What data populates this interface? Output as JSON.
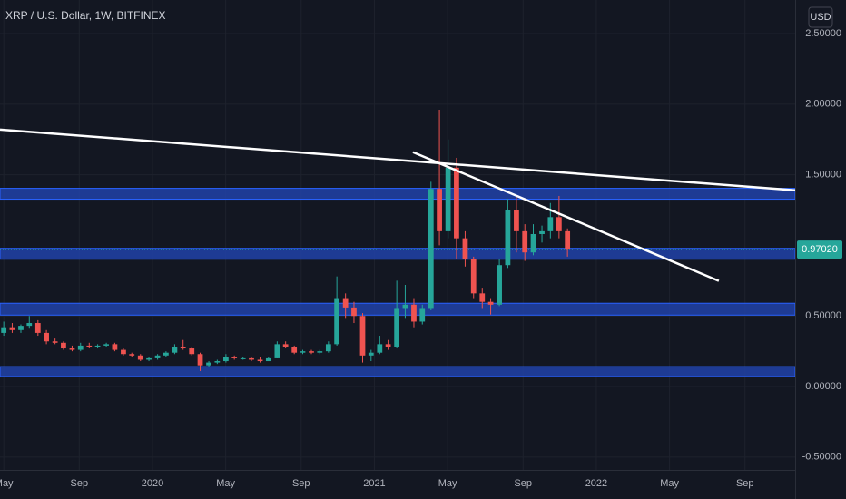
{
  "chart_data": {
    "type": "candlestick",
    "title": "XRP / U.S. Dollar, 1W, BITFINEX",
    "currency": "USD",
    "up_color": "#26a69a",
    "down_color": "#ef5350",
    "grid": true,
    "xlim": [
      2019.313,
      2022.896
    ],
    "ylim": [
      -0.591,
      2.738
    ],
    "xticks": [
      {
        "value": 2019.33,
        "label": "May"
      },
      {
        "value": 2019.67,
        "label": "Sep"
      },
      2020,
      {
        "value": 2020.33,
        "label": "May"
      },
      {
        "value": 2020.67,
        "label": "Sep"
      },
      2021,
      {
        "value": 2021.33,
        "label": "May"
      },
      {
        "value": 2021.67,
        "label": "Sep"
      },
      2022,
      {
        "value": 2022.33,
        "label": "May"
      },
      {
        "value": 2022.67,
        "label": "Sep"
      }
    ],
    "yticks": [
      {
        "value": 2.5,
        "label": "2.50000"
      },
      {
        "value": 2.0,
        "label": "2.00000"
      },
      {
        "value": 1.5,
        "label": "1.50000"
      },
      {
        "value": 0.5,
        "label": "0.50000"
      },
      {
        "value": 0,
        "label": "0.00000"
      },
      {
        "value": -0.5,
        "label": "-0.50000"
      }
    ],
    "last_price": {
      "value": 0.9702,
      "label": "0.97020"
    },
    "zone_color": "#2142a8",
    "zones": [
      {
        "from": 1.327,
        "to": 1.404
      },
      {
        "from": 0.902,
        "to": 0.979
      },
      {
        "from": 0.506,
        "to": 0.59
      },
      {
        "from": 0.071,
        "to": 0.141
      }
    ],
    "trendline_color": "#ffffff",
    "trendlines": [
      {
        "x": [
          2019.313,
          2022.896
        ],
        "y": [
          1.82,
          1.39
        ]
      },
      {
        "x": [
          2021.174,
          2022.552
        ],
        "y": [
          1.66,
          0.748
        ]
      }
    ],
    "x": [
      2019.33,
      2019.368,
      2019.407,
      2019.445,
      2019.484,
      2019.522,
      2019.561,
      2019.599,
      2019.638,
      2019.676,
      2019.715,
      2019.753,
      2019.792,
      2019.83,
      2019.869,
      2019.907,
      2019.946,
      2019.984,
      2020.023,
      2020.061,
      2020.1,
      2020.138,
      2020.177,
      2020.215,
      2020.254,
      2020.292,
      2020.331,
      2020.369,
      2020.408,
      2020.446,
      2020.485,
      2020.523,
      2020.562,
      2020.6,
      2020.639,
      2020.677,
      2020.716,
      2020.754,
      2020.793,
      2020.831,
      2020.87,
      2020.908,
      2020.947,
      2020.985,
      2021.024,
      2021.062,
      2021.101,
      2021.139,
      2021.178,
      2021.216,
      2021.255,
      2021.293,
      2021.332,
      2021.37,
      2021.409,
      2021.447,
      2021.486,
      2021.524,
      2021.563,
      2021.601,
      2021.64,
      2021.678,
      2021.716,
      2021.755,
      2021.793,
      2021.832,
      2021.87
    ],
    "open": [
      0.38,
      0.42,
      0.4,
      0.43,
      0.45,
      0.38,
      0.32,
      0.31,
      0.27,
      0.26,
      0.29,
      0.28,
      0.29,
      0.3,
      0.26,
      0.23,
      0.22,
      0.19,
      0.2,
      0.22,
      0.24,
      0.28,
      0.27,
      0.23,
      0.15,
      0.17,
      0.18,
      0.21,
      0.2,
      0.2,
      0.19,
      0.18,
      0.2,
      0.3,
      0.28,
      0.24,
      0.25,
      0.24,
      0.25,
      0.3,
      0.62,
      0.56,
      0.5,
      0.22,
      0.24,
      0.3,
      0.28,
      0.55,
      0.58,
      0.46,
      0.55,
      1.4,
      1.1,
      1.55,
      1.05,
      0.9,
      0.66,
      0.6,
      0.58,
      0.86,
      1.25,
      1.1,
      0.95,
      1.08,
      1.1,
      1.2,
      1.1
    ],
    "high": [
      0.46,
      0.45,
      0.44,
      0.5,
      0.47,
      0.4,
      0.34,
      0.32,
      0.29,
      0.31,
      0.31,
      0.3,
      0.31,
      0.31,
      0.27,
      0.24,
      0.23,
      0.21,
      0.23,
      0.25,
      0.3,
      0.33,
      0.28,
      0.24,
      0.18,
      0.19,
      0.23,
      0.22,
      0.21,
      0.21,
      0.21,
      0.21,
      0.32,
      0.32,
      0.29,
      0.26,
      0.26,
      0.26,
      0.32,
      0.78,
      0.66,
      0.6,
      0.52,
      0.26,
      0.36,
      0.33,
      0.75,
      0.72,
      0.62,
      0.58,
      1.45,
      1.96,
      1.75,
      1.62,
      1.1,
      0.92,
      0.7,
      0.62,
      0.9,
      1.33,
      1.35,
      1.15,
      1.15,
      1.14,
      1.3,
      1.35,
      1.12
    ],
    "low": [
      0.36,
      0.38,
      0.38,
      0.41,
      0.36,
      0.3,
      0.3,
      0.26,
      0.25,
      0.25,
      0.27,
      0.27,
      0.28,
      0.25,
      0.22,
      0.21,
      0.18,
      0.18,
      0.19,
      0.21,
      0.23,
      0.26,
      0.22,
      0.11,
      0.14,
      0.16,
      0.17,
      0.19,
      0.19,
      0.18,
      0.17,
      0.18,
      0.2,
      0.27,
      0.23,
      0.23,
      0.23,
      0.23,
      0.24,
      0.29,
      0.48,
      0.45,
      0.17,
      0.18,
      0.23,
      0.26,
      0.27,
      0.48,
      0.42,
      0.44,
      0.54,
      1.0,
      1.05,
      0.9,
      0.85,
      0.62,
      0.55,
      0.51,
      0.57,
      0.84,
      0.95,
      0.89,
      0.93,
      1.02,
      1.05,
      1.05,
      0.92
    ],
    "close": [
      0.42,
      0.4,
      0.43,
      0.45,
      0.38,
      0.32,
      0.31,
      0.27,
      0.26,
      0.29,
      0.28,
      0.29,
      0.3,
      0.26,
      0.23,
      0.22,
      0.19,
      0.2,
      0.22,
      0.24,
      0.28,
      0.27,
      0.23,
      0.15,
      0.17,
      0.18,
      0.21,
      0.2,
      0.2,
      0.19,
      0.18,
      0.2,
      0.3,
      0.28,
      0.24,
      0.25,
      0.24,
      0.25,
      0.3,
      0.62,
      0.56,
      0.5,
      0.22,
      0.24,
      0.3,
      0.28,
      0.55,
      0.58,
      0.46,
      0.55,
      1.4,
      1.1,
      1.55,
      1.05,
      0.9,
      0.66,
      0.6,
      0.58,
      0.86,
      1.25,
      1.1,
      0.95,
      1.08,
      1.1,
      1.2,
      1.1,
      0.97
    ]
  }
}
